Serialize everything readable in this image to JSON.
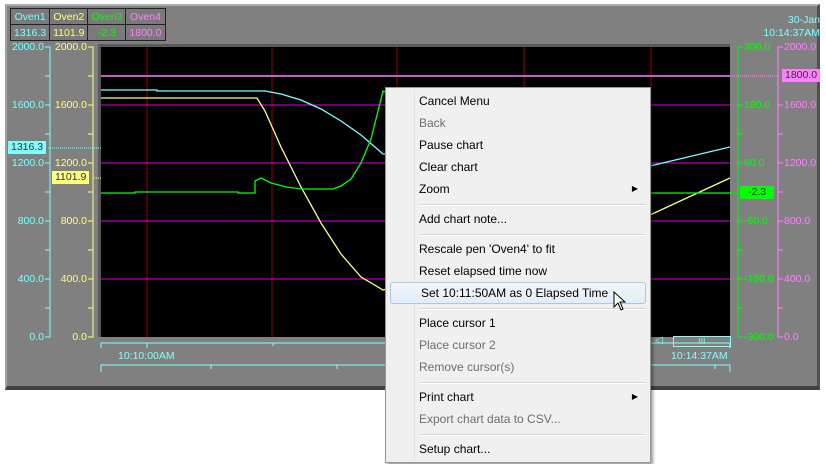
{
  "legend": {
    "pens": [
      {
        "name": "Oven1",
        "value": "1316.3",
        "color": "#80ffff"
      },
      {
        "name": "Oven2",
        "value": "1101.9",
        "color": "#ffff80"
      },
      {
        "name": "Oven3",
        "value": "-2.3",
        "color": "#00ff00"
      },
      {
        "name": "Oven4",
        "value": "1800.0",
        "color": "#ff80ff"
      }
    ]
  },
  "datetime": {
    "date": "30-Jan",
    "time": "10:14:37AM"
  },
  "axes": {
    "oven1": [
      "2000.0",
      "1600.0",
      "1200.0",
      "800.0",
      "400.0",
      "0.0"
    ],
    "oven2": [
      "2000.0",
      "1600.0",
      "1200.0",
      "800.0",
      "400.0",
      "0.0"
    ],
    "oven3": [
      "300.0",
      "180.0",
      "60.0",
      "-60.0",
      "-180.0",
      "-300.0"
    ],
    "oven4": [
      "2000.0",
      "1600.0",
      "1200.0",
      "800.0",
      "400.0",
      "0.0"
    ]
  },
  "time_axis": {
    "start": "10:10:00AM",
    "end": "10:14:37AM"
  },
  "scrollbar": {
    "thumb_label": "III"
  },
  "menu": {
    "items": [
      {
        "label": "Cancel Menu",
        "enabled": true
      },
      {
        "label": "Back",
        "enabled": false
      },
      {
        "label": "Pause chart",
        "enabled": true
      },
      {
        "label": "Clear chart",
        "enabled": true
      },
      {
        "label": "Zoom",
        "enabled": true,
        "submenu": true
      },
      {
        "label": "Add chart note...",
        "enabled": true
      },
      {
        "label": "Rescale pen 'Oven4' to fit",
        "enabled": true
      },
      {
        "label": "Reset elapsed time now",
        "enabled": true
      },
      {
        "label": "Set 10:11:50AM as 0 Elapsed Time",
        "enabled": true,
        "highlighted": true
      },
      {
        "label": "Place cursor 1",
        "enabled": true
      },
      {
        "label": "Place cursor 2",
        "enabled": false
      },
      {
        "label": "Remove cursor(s)",
        "enabled": false
      },
      {
        "label": "Print chart",
        "enabled": true,
        "submenu": true
      },
      {
        "label": "Export chart data to CSV...",
        "enabled": false
      },
      {
        "label": "Setup chart...",
        "enabled": true
      }
    ]
  }
}
